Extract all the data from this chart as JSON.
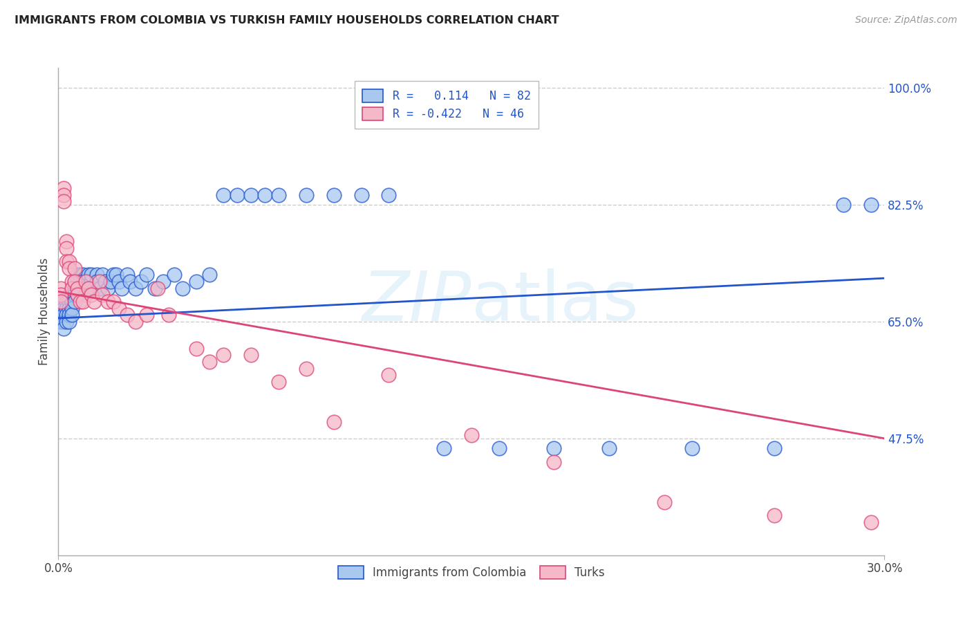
{
  "title": "IMMIGRANTS FROM COLOMBIA VS TURKISH FAMILY HOUSEHOLDS CORRELATION CHART",
  "source": "Source: ZipAtlas.com",
  "ylabel": "Family Households",
  "yticks_right": [
    "100.0%",
    "82.5%",
    "65.0%",
    "47.5%"
  ],
  "yticks_right_vals": [
    1.0,
    0.825,
    0.65,
    0.475
  ],
  "legend_blue_label": "R =   0.114   N = 82",
  "legend_pink_label": "R = -0.422   N = 46",
  "watermark": "ZIPatlas",
  "blue_color": "#A8C8F0",
  "pink_color": "#F5B8C8",
  "blue_line_color": "#2255CC",
  "pink_line_color": "#DD4477",
  "xlim": [
    0.0,
    0.3
  ],
  "ylim": [
    0.3,
    1.03
  ],
  "blue_line_x0": 0.0,
  "blue_line_y0": 0.655,
  "blue_line_x1": 0.3,
  "blue_line_y1": 0.715,
  "pink_line_x0": 0.0,
  "pink_line_y0": 0.695,
  "pink_line_x1": 0.3,
  "pink_line_y1": 0.475,
  "colombia_x": [
    0.001,
    0.001,
    0.001,
    0.002,
    0.002,
    0.002,
    0.002,
    0.002,
    0.003,
    0.003,
    0.003,
    0.003,
    0.004,
    0.004,
    0.004,
    0.004,
    0.004,
    0.005,
    0.005,
    0.005,
    0.005,
    0.005,
    0.006,
    0.006,
    0.006,
    0.006,
    0.007,
    0.007,
    0.007,
    0.007,
    0.008,
    0.008,
    0.008,
    0.009,
    0.009,
    0.009,
    0.01,
    0.01,
    0.011,
    0.011,
    0.012,
    0.012,
    0.013,
    0.014,
    0.014,
    0.015,
    0.016,
    0.017,
    0.018,
    0.019,
    0.02,
    0.021,
    0.022,
    0.023,
    0.025,
    0.026,
    0.028,
    0.03,
    0.032,
    0.035,
    0.038,
    0.042,
    0.045,
    0.05,
    0.055,
    0.06,
    0.065,
    0.07,
    0.075,
    0.08,
    0.09,
    0.1,
    0.11,
    0.12,
    0.14,
    0.16,
    0.18,
    0.2,
    0.23,
    0.26,
    0.285,
    0.295
  ],
  "colombia_y": [
    0.67,
    0.66,
    0.65,
    0.68,
    0.67,
    0.66,
    0.65,
    0.64,
    0.68,
    0.67,
    0.66,
    0.65,
    0.69,
    0.68,
    0.67,
    0.66,
    0.65,
    0.7,
    0.69,
    0.68,
    0.67,
    0.66,
    0.71,
    0.7,
    0.69,
    0.68,
    0.72,
    0.71,
    0.7,
    0.69,
    0.72,
    0.71,
    0.7,
    0.72,
    0.71,
    0.7,
    0.71,
    0.69,
    0.72,
    0.7,
    0.71,
    0.72,
    0.7,
    0.72,
    0.71,
    0.7,
    0.72,
    0.71,
    0.7,
    0.71,
    0.72,
    0.72,
    0.71,
    0.7,
    0.72,
    0.71,
    0.7,
    0.71,
    0.72,
    0.7,
    0.71,
    0.72,
    0.7,
    0.71,
    0.72,
    0.84,
    0.84,
    0.84,
    0.84,
    0.84,
    0.84,
    0.84,
    0.84,
    0.84,
    0.46,
    0.46,
    0.46,
    0.46,
    0.46,
    0.46,
    0.825,
    0.825
  ],
  "turks_x": [
    0.001,
    0.001,
    0.001,
    0.002,
    0.002,
    0.002,
    0.003,
    0.003,
    0.003,
    0.004,
    0.004,
    0.005,
    0.005,
    0.006,
    0.006,
    0.007,
    0.007,
    0.008,
    0.009,
    0.01,
    0.011,
    0.012,
    0.013,
    0.015,
    0.016,
    0.018,
    0.02,
    0.022,
    0.025,
    0.028,
    0.032,
    0.036,
    0.04,
    0.05,
    0.055,
    0.06,
    0.07,
    0.08,
    0.09,
    0.1,
    0.12,
    0.15,
    0.18,
    0.22,
    0.26,
    0.295
  ],
  "turks_y": [
    0.7,
    0.69,
    0.68,
    0.85,
    0.84,
    0.83,
    0.77,
    0.76,
    0.74,
    0.74,
    0.73,
    0.71,
    0.7,
    0.73,
    0.71,
    0.7,
    0.69,
    0.68,
    0.68,
    0.71,
    0.7,
    0.69,
    0.68,
    0.71,
    0.69,
    0.68,
    0.68,
    0.67,
    0.66,
    0.65,
    0.66,
    0.7,
    0.66,
    0.61,
    0.59,
    0.6,
    0.6,
    0.56,
    0.58,
    0.5,
    0.57,
    0.48,
    0.44,
    0.38,
    0.36,
    0.35
  ]
}
